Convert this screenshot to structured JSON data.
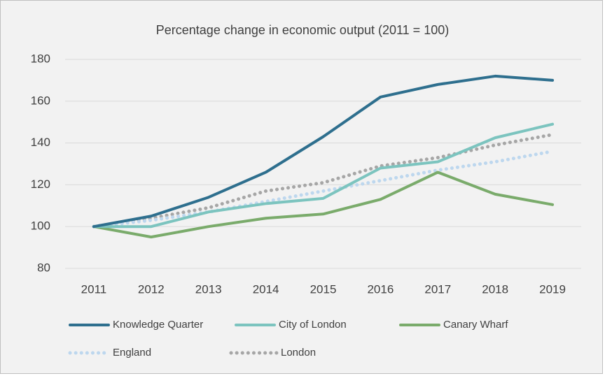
{
  "chart_data": {
    "type": "line",
    "title": "Percentage change in economic output (2011 = 100)",
    "categories": [
      "2011",
      "2012",
      "2013",
      "2014",
      "2015",
      "2016",
      "2017",
      "2018",
      "2019"
    ],
    "series": [
      {
        "name": "Knowledge Quarter",
        "color": "#2e6f8e",
        "dash": "solid",
        "values": [
          100,
          105,
          114,
          126,
          143,
          162,
          168,
          172,
          170
        ]
      },
      {
        "name": "City of London",
        "color": "#7cc4bf",
        "dash": "solid",
        "values": [
          100,
          100,
          107,
          111,
          113.5,
          128,
          131,
          142.5,
          149
        ]
      },
      {
        "name": "Canary Wharf",
        "color": "#7aab6b",
        "dash": "solid",
        "values": [
          100,
          95,
          100,
          104,
          106,
          113,
          126,
          115.5,
          110.5
        ]
      },
      {
        "name": "England",
        "color": "#bdd7ee",
        "dash": "dotted",
        "values": [
          100,
          103,
          107,
          112,
          117,
          122,
          127,
          131,
          136
        ]
      },
      {
        "name": "London",
        "color": "#a6a6a6",
        "dash": "dotted",
        "values": [
          100,
          104,
          109,
          117,
          121,
          129,
          133,
          139,
          144
        ]
      }
    ],
    "ylim": [
      80,
      180
    ],
    "yticks": [
      80,
      100,
      120,
      140,
      160,
      180
    ],
    "grid": true,
    "legend": "bottom"
  }
}
